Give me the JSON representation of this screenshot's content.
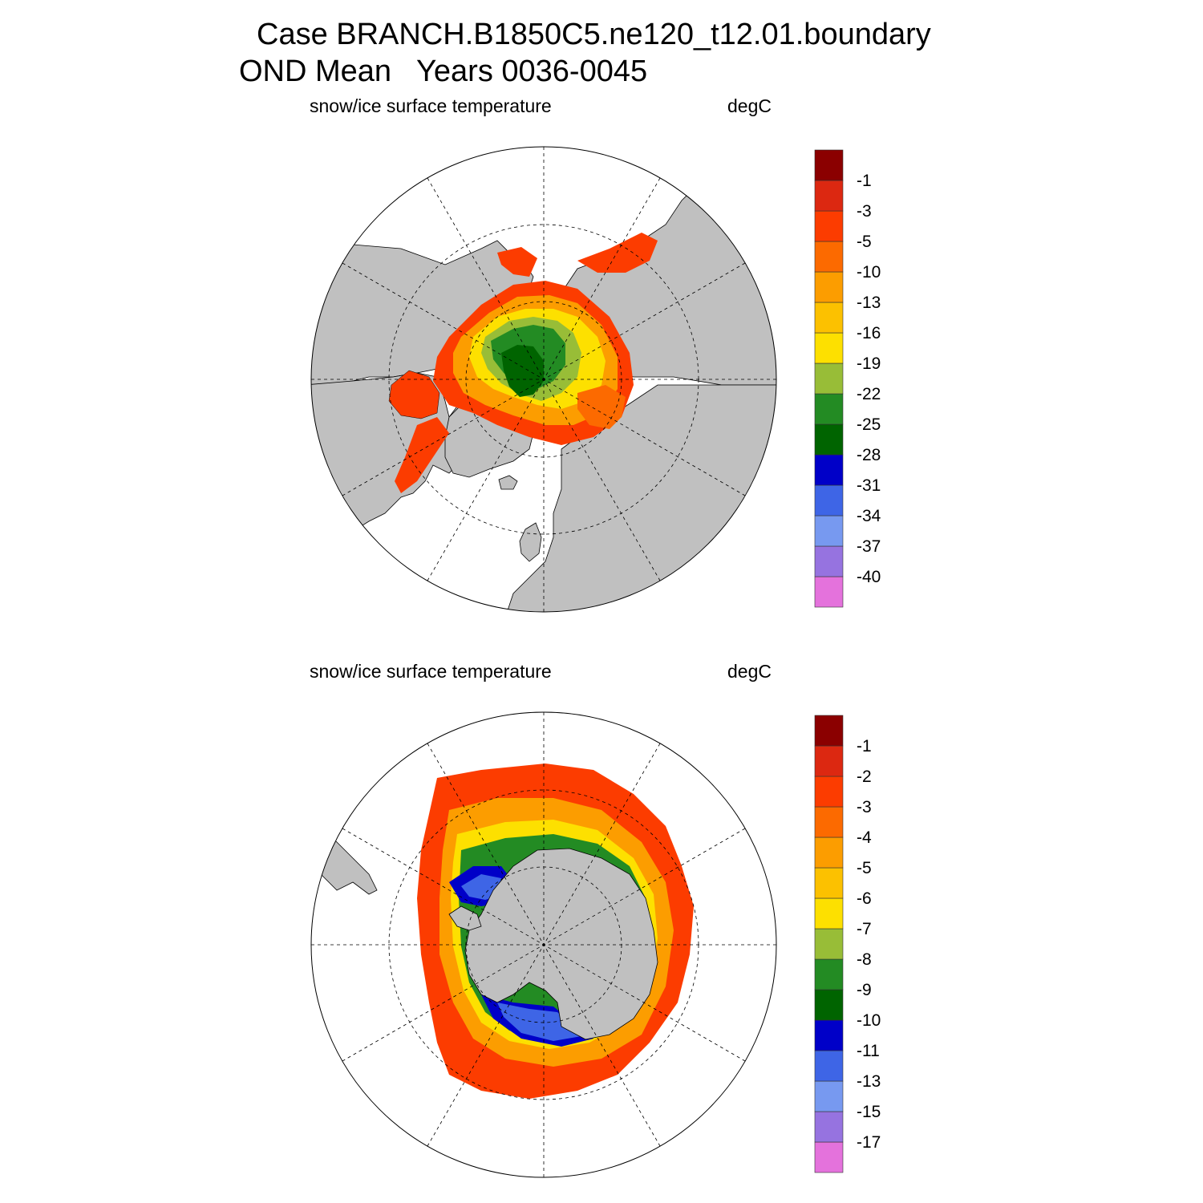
{
  "title_line1": "Case BRANCH.B1850C5.ne120_t12.01.boundary",
  "title_line2": "OND Mean   Years 0036-0045",
  "colors": {
    "land": "#c0c0c0",
    "ocean": "#ffffff",
    "scale": [
      "#e472dc",
      "#9673e0",
      "#7799f0",
      "#3e65e6",
      "#0000c8",
      "#006400",
      "#238b23",
      "#98bd37",
      "#fde000",
      "#fcc100",
      "#fc9d00",
      "#fc6a00",
      "#fc3c00",
      "#dc2811",
      "#8b0000"
    ]
  },
  "panels": [
    {
      "id": "north",
      "left_label": "snow/ice surface temperature",
      "right_label": "degC",
      "colorbar_labels": [
        "-1",
        "-3",
        "-5",
        "-10",
        "-13",
        "-16",
        "-19",
        "-22",
        "-25",
        "-28",
        "-31",
        "-34",
        "-37",
        "-40"
      ]
    },
    {
      "id": "south",
      "left_label": "snow/ice surface temperature",
      "right_label": "degC",
      "colorbar_labels": [
        "-1",
        "-2",
        "-3",
        "-4",
        "-5",
        "-6",
        "-7",
        "-8",
        "-9",
        "-10",
        "-11",
        "-13",
        "-15",
        "-17"
      ]
    }
  ]
}
